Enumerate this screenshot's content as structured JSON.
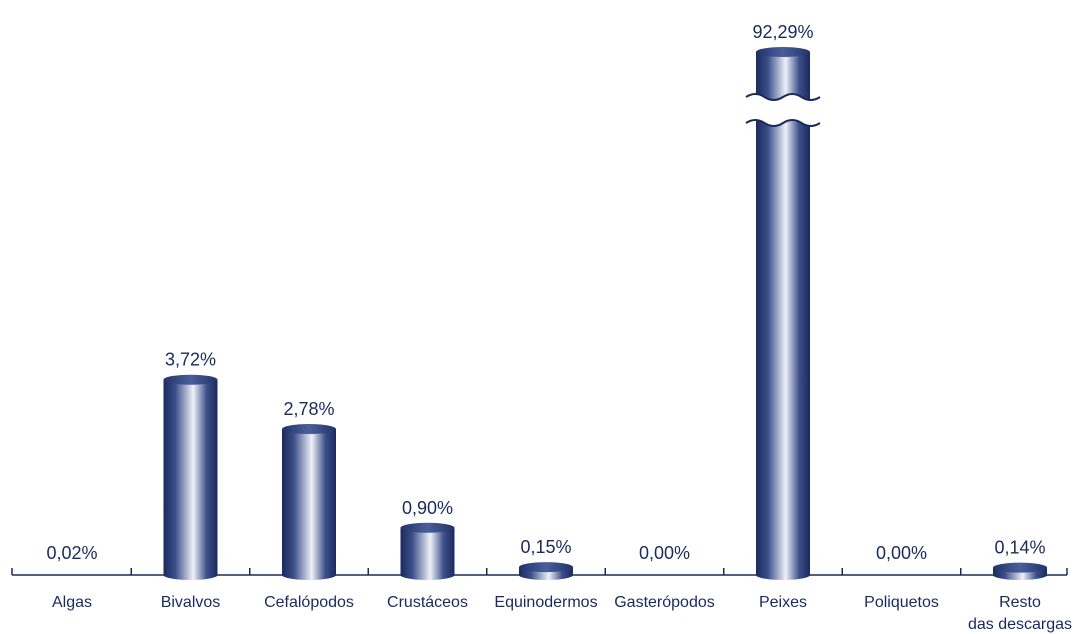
{
  "chart_data": {
    "type": "bar",
    "categories": [
      [
        "Algas"
      ],
      [
        "Bivalvos"
      ],
      [
        "Cefalópodos"
      ],
      [
        "Crustáceos"
      ],
      [
        "Equinodermos"
      ],
      [
        "Gasterópodos"
      ],
      [
        "Peixes"
      ],
      [
        "Poliquetos"
      ],
      [
        "Resto",
        "das descargas"
      ]
    ],
    "values": [
      0.02,
      3.72,
      2.78,
      0.9,
      0.15,
      0.0,
      92.29,
      0.0,
      0.14
    ],
    "value_labels": [
      "0,02%",
      "3,72%",
      "2,78%",
      "0,90%",
      "0,15%",
      "0,00%",
      "92,29%",
      "0,00%",
      "0,14%"
    ],
    "title": "",
    "xlabel": "",
    "ylabel": "",
    "axis_break": {
      "applies_to": "Peixes",
      "style": "wavy"
    },
    "grid": false,
    "legend": "none",
    "colors": {
      "bar_dark": "#1b2a5c",
      "bar_light": "#eef1f8",
      "text": "#1b2a5c",
      "axis": "#1b2a5c"
    }
  }
}
